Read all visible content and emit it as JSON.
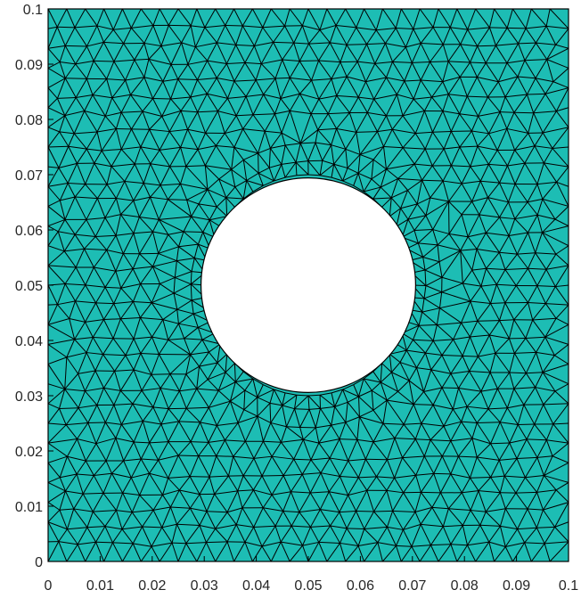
{
  "chart_data": {
    "type": "mesh",
    "description_of_content": "triangular finite element mesh of a square plate with a central circular hole",
    "xlim": [
      0,
      0.1
    ],
    "ylim": [
      0,
      0.1
    ],
    "x_ticks": [
      "0",
      "0.01",
      "0.02",
      "0.03",
      "0.04",
      "0.05",
      "0.06",
      "0.07",
      "0.08",
      "0.09",
      "0.1"
    ],
    "y_ticks": [
      "0",
      "0.01",
      "0.02",
      "0.03",
      "0.04",
      "0.05",
      "0.06",
      "0.07",
      "0.08",
      "0.09",
      "0.1"
    ],
    "domain": {
      "x_min": 0,
      "x_max": 0.1,
      "y_min": 0,
      "y_max": 0.1
    },
    "hole": {
      "center_x": 0.05,
      "center_y": 0.05,
      "radius": 0.02
    },
    "target_element_size": 0.0036,
    "fill_color": "#1dbdb4",
    "edge_color": "#000000",
    "background_color": "#ffffff"
  }
}
